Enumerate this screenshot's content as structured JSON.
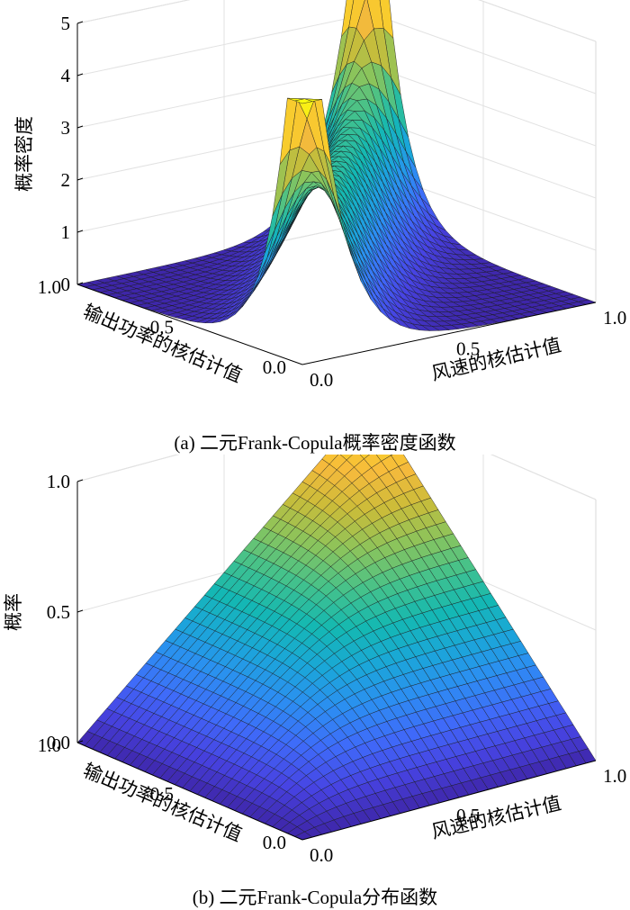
{
  "chart_data": [
    {
      "type": "surface",
      "function": "frank_copula_density",
      "theta": 10,
      "zlabel": "概率密度",
      "xlabel": "风速的核估计值",
      "ylabel": "输出功率的核估计值",
      "xticks": [
        "0.0",
        "0.5",
        "1.0"
      ],
      "yticks": [
        "1.0",
        "0.5",
        "0.0"
      ],
      "zticks": [
        "0",
        "1",
        "2",
        "3",
        "4",
        "5"
      ],
      "xlim": [
        0,
        1
      ],
      "ylim": [
        0,
        1
      ],
      "zlim": [
        0,
        5
      ],
      "grid": true,
      "peak_values": {
        "at_0_0": 5.0,
        "at_1_1": 5.0,
        "at_0_1": 0.0,
        "at_1_0": 0.0
      },
      "caption": "(a) 二元Frank-Copula概率密度函数"
    },
    {
      "type": "surface",
      "function": "frank_copula_cdf",
      "theta": 10,
      "zlabel": "概率",
      "xlabel": "风速的核估计值",
      "ylabel": "输出功率的核估计值",
      "xticks": [
        "0.0",
        "0.5",
        "1.0"
      ],
      "yticks": [
        "1.0",
        "0.5",
        "0.0"
      ],
      "zticks": [
        "0.0",
        "0.5",
        "1.0"
      ],
      "xlim": [
        0,
        1
      ],
      "ylim": [
        0,
        1
      ],
      "zlim": [
        0,
        1
      ],
      "grid": true,
      "corner_values": {
        "at_0_0": 0.0,
        "at_1_1": 1.0,
        "at_0_1": 0.0,
        "at_1_0": 0.0
      },
      "caption": "(b) 二元Frank-Copula分布函数"
    }
  ],
  "colormap": [
    "#3e26a8",
    "#4743e2",
    "#3f6af9",
    "#2c8ef2",
    "#1aa7d8",
    "#14b8b2",
    "#46c28a",
    "#8cc45b",
    "#cbbc39",
    "#f7ba3c",
    "#f9d526",
    "#f9fb0e"
  ]
}
